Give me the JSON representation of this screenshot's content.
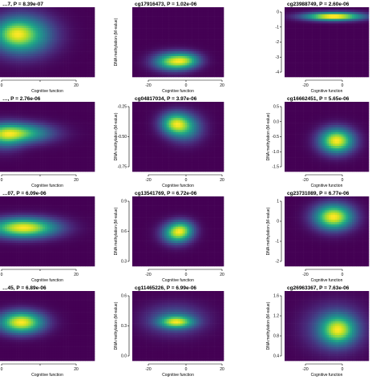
{
  "chart_data": [
    {
      "type": "heatmap",
      "title": "…7, P = 8.39e-07",
      "xlabel": "Cognitive function",
      "ylabel": "",
      "x_ticks": [
        "0",
        "",
        "20"
      ],
      "y_ticks": [],
      "xlim": [
        -10,
        30
      ],
      "ylim": [
        0,
        1
      ],
      "blobs": [
        {
          "x": -0.5,
          "y": 0.6,
          "sx": 8,
          "sy": 0.18,
          "w": 1
        },
        {
          "x": -4,
          "y": 0.62,
          "sx": 5,
          "sy": 0.12,
          "w": 0.5
        }
      ]
    },
    {
      "type": "heatmap",
      "title": "cg17916473, P = 1.02e-06",
      "xlabel": "Cognitive function",
      "ylabel": "DNA methylation (M-value)",
      "x_ticks": [
        "-20",
        "0",
        "20"
      ],
      "y_ticks": [],
      "xlim": [
        -30,
        30
      ],
      "ylim": [
        0,
        1
      ],
      "blobs": [
        {
          "x": -3,
          "y": 0.22,
          "sx": 8,
          "sy": 0.08,
          "w": 1
        },
        {
          "x": 6,
          "y": 0.24,
          "sx": 6,
          "sy": 0.07,
          "w": 0.5
        }
      ]
    },
    {
      "type": "heatmap",
      "title": "cg23988749, P = 2.60e-06",
      "xlabel": "Cognitive function",
      "ylabel": "",
      "x_ticks": [
        "-20",
        "0"
      ],
      "y_ticks": [
        "0",
        "-1",
        "-2",
        "-3",
        "-4"
      ],
      "xlim": [
        -35,
        20
      ],
      "ylim": [
        -4,
        0.5
      ],
      "blobs": [
        {
          "x": -3,
          "y": -0.1,
          "sx": 12,
          "sy": 0.17,
          "w": 1
        }
      ]
    },
    {
      "type": "heatmap",
      "title": "…, P = 2.76e-06",
      "xlabel": "Cognitive function",
      "ylabel": "",
      "x_ticks": [
        "0",
        "",
        "20"
      ],
      "y_ticks": [],
      "xlim": [
        -10,
        30
      ],
      "ylim": [
        0,
        1
      ],
      "blobs": [
        {
          "x": -3,
          "y": 0.55,
          "sx": 9,
          "sy": 0.09,
          "w": 1
        },
        {
          "x": -8,
          "y": 0.5,
          "sx": 5,
          "sy": 0.12,
          "w": 0.5
        }
      ]
    },
    {
      "type": "heatmap",
      "title": "cg04817034, P = 3.97e-06",
      "xlabel": "Cognitive function",
      "ylabel": "DNA methylation (M-value)",
      "x_ticks": [
        "-20",
        "0",
        "20"
      ],
      "y_ticks": [
        "-0.25",
        "-0.50",
        "-0.75"
      ],
      "xlim": [
        -30,
        30
      ],
      "ylim": [
        -0.85,
        -0.05
      ],
      "blobs": [
        {
          "x": -2,
          "y": -0.3,
          "sx": 6,
          "sy": 0.08,
          "w": 1
        },
        {
          "x": 5,
          "y": -0.35,
          "sx": 7,
          "sy": 0.1,
          "w": 0.6
        }
      ]
    },
    {
      "type": "heatmap",
      "title": "cg16662451, P = 5.65e-06",
      "xlabel": "Cognitive function",
      "ylabel": "DNA methylation (M-value)",
      "x_ticks": [
        "-20",
        "0"
      ],
      "y_ticks": [
        "0.5",
        "0.0",
        "-0.5",
        "-1.0",
        "-1.5"
      ],
      "xlim": [
        -35,
        20
      ],
      "ylim": [
        -1.8,
        0.7
      ],
      "blobs": [
        {
          "x": -1,
          "y": -0.7,
          "sx": 7,
          "sy": 0.28,
          "w": 1
        }
      ]
    },
    {
      "type": "heatmap",
      "title": "…07, P = 6.09e-06",
      "xlabel": "Cognitive function",
      "ylabel": "",
      "x_ticks": [
        "0",
        "",
        "20"
      ],
      "y_ticks": [],
      "xlim": [
        -10,
        30
      ],
      "ylim": [
        0,
        1
      ],
      "blobs": [
        {
          "x": 0,
          "y": 0.55,
          "sx": 9,
          "sy": 0.09,
          "w": 1
        }
      ]
    },
    {
      "type": "heatmap",
      "title": "cg13541769, P = 6.72e-06",
      "xlabel": "Cognitive function",
      "ylabel": "DNA methylation (M-value)",
      "x_ticks": [
        "-20",
        "0",
        "20"
      ],
      "y_ticks": [
        "0.9",
        "0.6",
        "0.3"
      ],
      "xlim": [
        -30,
        30
      ],
      "ylim": [
        0.15,
        1.0
      ],
      "blobs": [
        {
          "x": -1,
          "y": 0.55,
          "sx": 6,
          "sy": 0.08,
          "w": 1
        },
        {
          "x": 3,
          "y": 0.6,
          "sx": 5,
          "sy": 0.07,
          "w": 0.6
        }
      ]
    },
    {
      "type": "heatmap",
      "title": "cg23731089, P = 6.77e-06",
      "xlabel": "Cognitive function",
      "ylabel": "DNA methylation (M-value)",
      "x_ticks": [
        "-20",
        "0"
      ],
      "y_ticks": [
        "1",
        "0",
        "-1",
        "-2"
      ],
      "xlim": [
        -35,
        20
      ],
      "ylim": [
        -2.4,
        1.5
      ],
      "blobs": [
        {
          "x": -3,
          "y": 0.35,
          "sx": 8,
          "sy": 0.45,
          "w": 1
        }
      ]
    },
    {
      "type": "heatmap",
      "title": "…45, P = 6.89e-06",
      "xlabel": "Cognitive function",
      "ylabel": "",
      "x_ticks": [
        "0",
        "",
        "20"
      ],
      "y_ticks": [],
      "xlim": [
        -10,
        30
      ],
      "ylim": [
        0,
        1
      ],
      "blobs": [
        {
          "x": -1,
          "y": 0.55,
          "sx": 6,
          "sy": 0.1,
          "w": 1
        }
      ]
    },
    {
      "type": "heatmap",
      "title": "cg11465226, P = 6.99e-06",
      "xlabel": "Cognitive function",
      "ylabel": "DNA methylation (M-value)",
      "x_ticks": [
        "-20",
        "0",
        "20"
      ],
      "y_ticks": [
        "0.6",
        "0.3",
        "0.0"
      ],
      "xlim": [
        -30,
        30
      ],
      "ylim": [
        -0.15,
        0.75
      ],
      "blobs": [
        {
          "x": -1,
          "y": 0.35,
          "sx": 7,
          "sy": 0.05,
          "w": 1
        },
        {
          "x": -2,
          "y": 0.38,
          "sx": 12,
          "sy": 0.12,
          "w": 0.4
        }
      ]
    },
    {
      "type": "heatmap",
      "title": "cg26963367, P = 7.63e-06",
      "xlabel": "Cognitive function",
      "ylabel": "DNA methylation (M-value)",
      "x_ticks": [
        "-20",
        "0"
      ],
      "y_ticks": [
        "1.6",
        "1.2",
        "0.8",
        "0.4"
      ],
      "xlim": [
        -35,
        20
      ],
      "ylim": [
        0.2,
        1.9
      ],
      "blobs": [
        {
          "x": 0,
          "y": 0.95,
          "sx": 7,
          "sy": 0.22,
          "w": 1
        },
        {
          "x": -2,
          "y": 1.0,
          "sx": 12,
          "sy": 0.35,
          "w": 0.4
        }
      ]
    }
  ],
  "palette": [
    "#440154",
    "#482173",
    "#433e85",
    "#38588c",
    "#2d708e",
    "#25858e",
    "#1e9b8a",
    "#2ab07f",
    "#52c569",
    "#86d549",
    "#c2df23",
    "#fde725"
  ]
}
